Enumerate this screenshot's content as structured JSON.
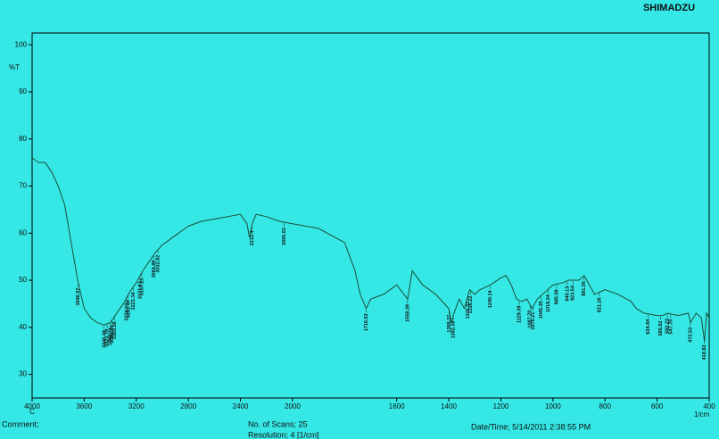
{
  "brand": "SHIMADZU",
  "footer": {
    "comment": "Comment;",
    "scans": "No. of Scans; 25",
    "resolution": "Resolution; 4 [1/cm]",
    "datetime": "Date/Time; 5/14/2011 2:38:55 PM"
  },
  "chart_data": {
    "type": "line",
    "y_label": "%T",
    "x_label": "1/cm",
    "x_corner_label": "C",
    "color": "#1d4d36",
    "xlim": [
      4000,
      400
    ],
    "ylim": [
      25,
      102.5
    ],
    "x_scale_break": 2000,
    "x_scale_ratio": 2,
    "xticks": [
      4000,
      3600,
      3200,
      2800,
      2400,
      2000,
      1600,
      1400,
      1200,
      1000,
      800,
      600,
      400
    ],
    "yticks": [
      30,
      40,
      50,
      60,
      70,
      80,
      90,
      100
    ],
    "x": [
      4000,
      3950,
      3900,
      3850,
      3800,
      3750,
      3700,
      3650,
      3600,
      3550,
      3500,
      3450,
      3400,
      3350,
      3300,
      3250,
      3200,
      3150,
      3100,
      3050,
      3000,
      2950,
      2900,
      2800,
      2700,
      2600,
      2500,
      2400,
      2350,
      2330,
      2310,
      2280,
      2200,
      2100,
      2000,
      1900,
      1800,
      1760,
      1740,
      1717,
      1700,
      1650,
      1600,
      1558,
      1540,
      1500,
      1450,
      1400,
      1390,
      1380,
      1360,
      1340,
      1320,
      1300,
      1280,
      1240,
      1200,
      1180,
      1160,
      1140,
      1120,
      1100,
      1080,
      1060,
      1040,
      1020,
      1000,
      960,
      940,
      900,
      880,
      860,
      840,
      820,
      800,
      750,
      700,
      680,
      650,
      600,
      580,
      560,
      520,
      480,
      472,
      450,
      430,
      418,
      410,
      400
    ],
    "values": [
      76,
      75,
      75,
      73,
      70,
      66,
      58,
      50,
      44,
      42,
      41,
      40.5,
      41,
      43,
      45,
      47.5,
      49.5,
      52,
      54,
      56,
      57.5,
      58.5,
      59.5,
      61.5,
      62.5,
      63,
      63.5,
      64,
      62,
      59,
      62,
      64,
      63.5,
      62.5,
      62,
      61,
      58,
      52,
      47,
      44,
      46,
      47,
      49,
      46,
      52,
      49,
      47,
      44,
      41,
      43,
      46,
      44,
      48,
      47,
      48,
      49,
      50.5,
      51,
      49,
      46,
      45.5,
      46,
      44,
      46,
      47,
      48,
      49,
      49.5,
      50,
      50,
      51,
      49,
      47,
      47.5,
      48,
      47,
      45.5,
      44,
      43,
      42.5,
      42.5,
      43,
      42.5,
      43,
      41,
      43,
      42,
      37,
      43,
      42
    ],
    "peak_labels": [
      3646.07,
      3386.14,
      3423.79,
      3446.49,
      3398.34,
      3365.56,
      {
        "value": 3274.6,
        "label": "3274.60"
      },
      3261.49,
      3223.34,
      3171.61,
      3157.25,
      3064.89,
      3032.82,
      2312.4,
      2065.62,
      1716.53,
      1558.39,
      1399.37,
      1382.38,
      1326.51,
      1316.22,
      1240.14,
      1129.39,
      {
        "value": 1087.7,
        "label": "1087.70"
      },
      1076.21,
      1045.35,
      1018.34,
      985.59,
      945.13,
      923.54,
      881.05,
      821.26,
      634.84,
      586.92,
      560.23,
      547.78,
      472.53,
      418.92
    ]
  }
}
